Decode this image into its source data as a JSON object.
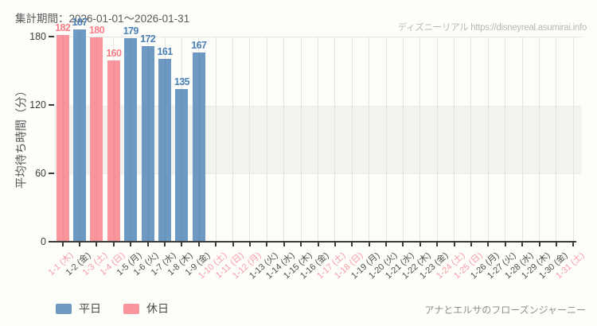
{
  "header": {
    "title": "集計期間：2026-01-01～2026-01-31",
    "watermark": "ディズニーリアル https://disneyreal.asumirai.info"
  },
  "footer": {
    "attraction_name": "アナとエルサのフローズンジャーニー"
  },
  "colors": {
    "weekday_bar": "#6d99c3",
    "holiday_bar": "#fb959d",
    "weekday_value_label": "#4a80b6",
    "holiday_value_label": "#f97f87",
    "weekday_axis_label": "#4d4d4d",
    "holiday_axis_label": "#f79ba4",
    "band": "#f2f2ef",
    "grid": "#e3e3e1",
    "axis": "#3c3c3c"
  },
  "chart_data": {
    "type": "bar",
    "title": "集計期間：2026-01-01～2026-01-31",
    "xlabel": "",
    "ylabel": "平均待ち時間（分）",
    "ylim": [
      0,
      180
    ],
    "yticks": [
      0,
      60,
      120,
      180
    ],
    "reference_band": {
      "from": 60,
      "to": 120
    },
    "grid": "vertical-per-category",
    "legend_position": "bottom-left",
    "legend": [
      {
        "label": "平日",
        "type": "weekday"
      },
      {
        "label": "休日",
        "type": "holiday"
      }
    ],
    "categories": [
      {
        "label": "1-1 (木)",
        "day": "holiday",
        "value": 182
      },
      {
        "label": "1-2 (金)",
        "day": "weekday",
        "value": 187
      },
      {
        "label": "1-3 (土)",
        "day": "holiday",
        "value": 180
      },
      {
        "label": "1-4 (日)",
        "day": "holiday",
        "value": 160
      },
      {
        "label": "1-5 (月)",
        "day": "weekday",
        "value": 179
      },
      {
        "label": "1-6 (火)",
        "day": "weekday",
        "value": 172
      },
      {
        "label": "1-7 (水)",
        "day": "weekday",
        "value": 161
      },
      {
        "label": "1-8 (木)",
        "day": "weekday",
        "value": 135
      },
      {
        "label": "1-9 (金)",
        "day": "weekday",
        "value": 167
      },
      {
        "label": "1-10 (土)",
        "day": "holiday",
        "value": null
      },
      {
        "label": "1-11 (日)",
        "day": "holiday",
        "value": null
      },
      {
        "label": "1-12 (月)",
        "day": "holiday",
        "value": null
      },
      {
        "label": "1-13 (火)",
        "day": "weekday",
        "value": null
      },
      {
        "label": "1-14 (水)",
        "day": "weekday",
        "value": null
      },
      {
        "label": "1-15 (木)",
        "day": "weekday",
        "value": null
      },
      {
        "label": "1-16 (金)",
        "day": "weekday",
        "value": null
      },
      {
        "label": "1-17 (土)",
        "day": "holiday",
        "value": null
      },
      {
        "label": "1-18 (日)",
        "day": "holiday",
        "value": null
      },
      {
        "label": "1-19 (月)",
        "day": "weekday",
        "value": null
      },
      {
        "label": "1-20 (火)",
        "day": "weekday",
        "value": null
      },
      {
        "label": "1-21 (水)",
        "day": "weekday",
        "value": null
      },
      {
        "label": "1-22 (木)",
        "day": "weekday",
        "value": null
      },
      {
        "label": "1-23 (金)",
        "day": "weekday",
        "value": null
      },
      {
        "label": "1-24 (土)",
        "day": "holiday",
        "value": null
      },
      {
        "label": "1-25 (日)",
        "day": "holiday",
        "value": null
      },
      {
        "label": "1-26 (月)",
        "day": "weekday",
        "value": null
      },
      {
        "label": "1-27 (火)",
        "day": "weekday",
        "value": null
      },
      {
        "label": "1-28 (水)",
        "day": "weekday",
        "value": null
      },
      {
        "label": "1-29 (木)",
        "day": "weekday",
        "value": null
      },
      {
        "label": "1-30 (金)",
        "day": "weekday",
        "value": null
      },
      {
        "label": "1-31 (土)",
        "day": "holiday",
        "value": null
      }
    ]
  }
}
